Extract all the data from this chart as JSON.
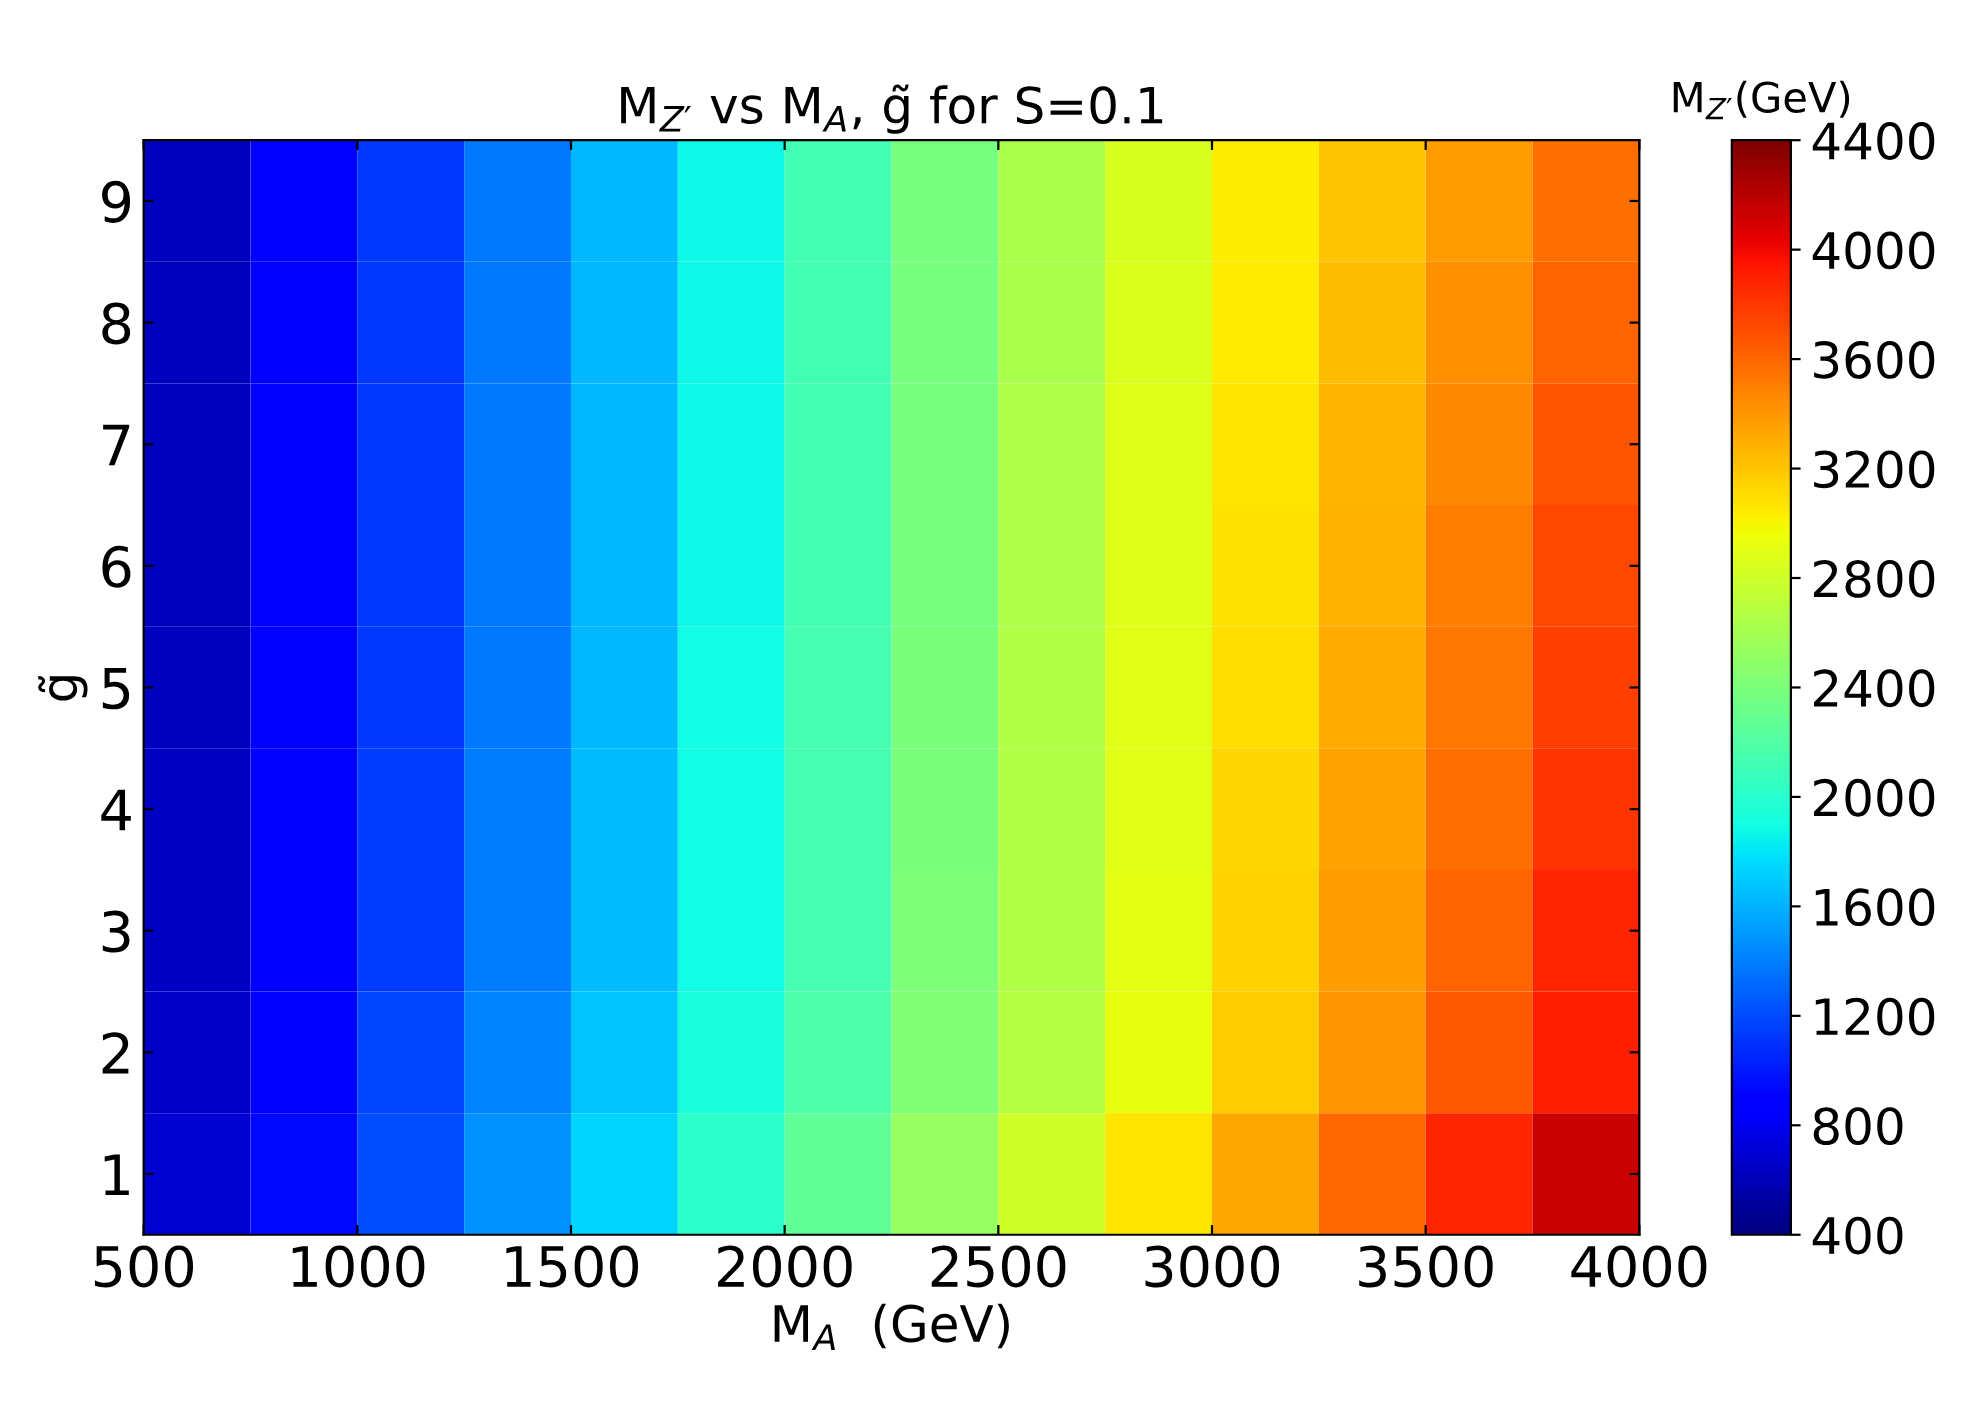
{
  "chart_data": {
    "type": "heatmap",
    "title": "M$_{Z′}$ vs M$_{A}$, g̃ for S=0.1",
    "xlabel": "M$_{A}$  (GeV)",
    "ylabel": "g̃",
    "clabel": "M$_{Z′}$(GeV)",
    "x": [
      625,
      875,
      1125,
      1375,
      1625,
      1875,
      2125,
      2375,
      2625,
      2875,
      3125,
      3375,
      3625,
      3875
    ],
    "y_categories": [
      "9",
      "8",
      "7",
      "6",
      "5",
      "4",
      "3",
      "2",
      "1"
    ],
    "cells": [
      [
        630,
        880,
        1130,
        1380,
        1630,
        1880,
        2130,
        2380,
        2630,
        2850,
        3030,
        3210,
        3380,
        3560
      ],
      [
        630,
        880,
        1130,
        1380,
        1630,
        1880,
        2130,
        2380,
        2630,
        2860,
        3050,
        3230,
        3420,
        3610
      ],
      [
        630,
        880,
        1130,
        1380,
        1630,
        1880,
        2130,
        2380,
        2640,
        2870,
        3070,
        3260,
        3460,
        3680
      ],
      [
        630,
        880,
        1130,
        1380,
        1630,
        1880,
        2130,
        2380,
        2640,
        2880,
        3080,
        3290,
        3500,
        3730
      ],
      [
        630,
        880,
        1130,
        1380,
        1630,
        1890,
        2140,
        2390,
        2650,
        2890,
        3100,
        3310,
        3530,
        3770
      ],
      [
        640,
        890,
        1140,
        1390,
        1640,
        1890,
        2140,
        2390,
        2650,
        2890,
        3120,
        3340,
        3570,
        3820
      ],
      [
        640,
        890,
        1140,
        1390,
        1640,
        1890,
        2140,
        2400,
        2660,
        2910,
        3140,
        3380,
        3610,
        3870
      ],
      [
        660,
        910,
        1170,
        1420,
        1670,
        1920,
        2170,
        2420,
        2670,
        2920,
        3170,
        3410,
        3650,
        3900
      ],
      [
        690,
        940,
        1210,
        1470,
        1740,
        2010,
        2270,
        2540,
        2800,
        3070,
        3330,
        3600,
        3880,
        4140
      ]
    ],
    "xlim": [
      500,
      4000
    ],
    "xticks": [
      500,
      1000,
      1500,
      2000,
      2500,
      3000,
      3500,
      4000
    ],
    "clim": [
      400,
      4400
    ],
    "cticks": [
      400,
      800,
      1200,
      1600,
      2000,
      2400,
      2800,
      3200,
      3600,
      4000,
      4400
    ]
  }
}
